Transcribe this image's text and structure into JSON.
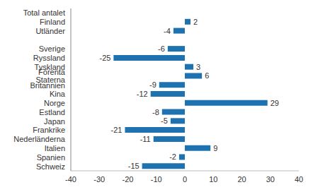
{
  "chart_data": {
    "type": "bar",
    "orientation": "horizontal",
    "categories": [
      "Total antalet",
      "Finland",
      "Utländer",
      null,
      "Sverige",
      "Ryssland",
      "Tyskland",
      "Förenta Staterna",
      "Britannien",
      "Kina",
      "Norge",
      "Estland",
      "Japan",
      "Frankrike",
      "Nederländerna",
      "Italien",
      "Spanien",
      "Schweiz"
    ],
    "values": [
      0,
      2,
      -4,
      null,
      -6,
      -25,
      3,
      6,
      -9,
      -12,
      29,
      -8,
      -5,
      -21,
      -11,
      9,
      -2,
      -15
    ],
    "color": "#1f72b0",
    "xlim": [
      -40,
      40
    ],
    "xticks": [
      -40,
      -30,
      -20,
      -10,
      0,
      10,
      20,
      30,
      40
    ],
    "grid": false,
    "data_labels": true
  }
}
